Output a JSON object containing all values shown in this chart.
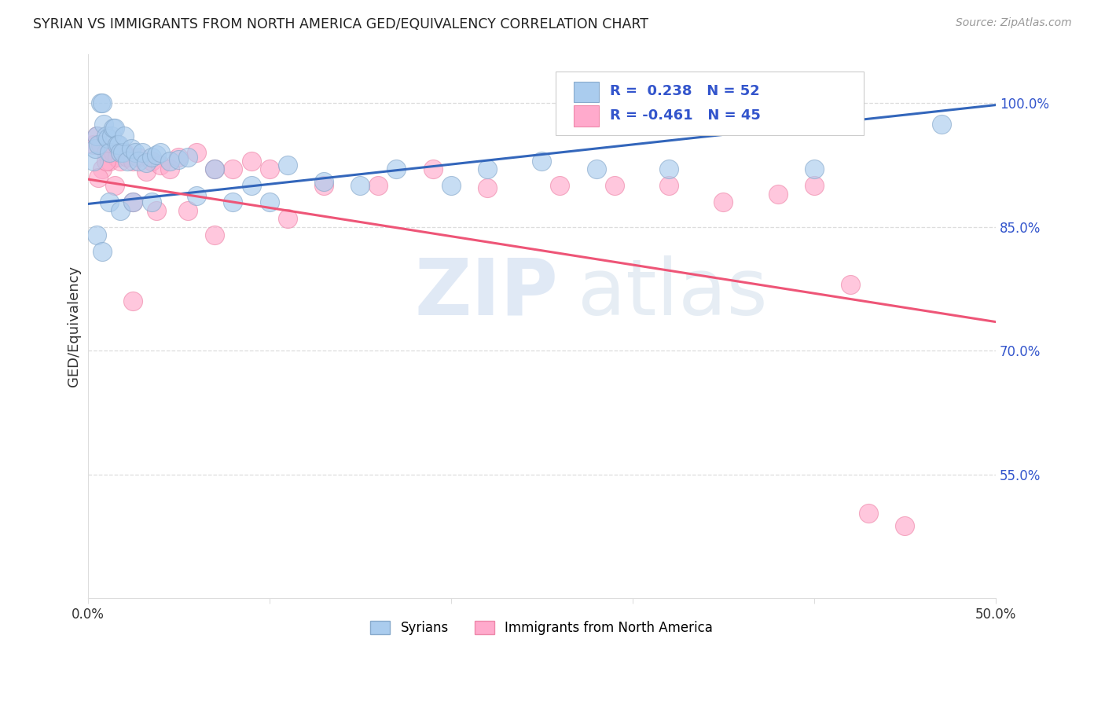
{
  "title": "SYRIAN VS IMMIGRANTS FROM NORTH AMERICA GED/EQUIVALENCY CORRELATION CHART",
  "source": "Source: ZipAtlas.com",
  "ylabel": "GED/Equivalency",
  "right_yticks": [
    "100.0%",
    "85.0%",
    "70.0%",
    "55.0%"
  ],
  "right_ytick_vals": [
    1.0,
    0.85,
    0.7,
    0.55
  ],
  "blue_scatter_color": "#AACCEE",
  "blue_edge_color": "#88AACC",
  "pink_scatter_color": "#FFAACC",
  "pink_edge_color": "#EE88AA",
  "blue_line_color": "#3366BB",
  "pink_line_color": "#EE5577",
  "xmin": 0.0,
  "xmax": 0.5,
  "ymin": 0.4,
  "ymax": 1.06,
  "blue_line_x": [
    0.0,
    0.5
  ],
  "blue_line_y": [
    0.878,
    0.998
  ],
  "pink_line_x": [
    0.0,
    0.5
  ],
  "pink_line_y": [
    0.908,
    0.735
  ],
  "r_blue": "0.238",
  "n_blue": "52",
  "r_pink": "-0.461",
  "n_pink": "45",
  "legend_text_color": "#3355CC",
  "grid_color": "#DDDDDD",
  "title_color": "#222222",
  "source_color": "#999999",
  "background_color": "#ffffff",
  "syrians_x": [
    0.003,
    0.004,
    0.005,
    0.006,
    0.007,
    0.008,
    0.009,
    0.01,
    0.011,
    0.012,
    0.013,
    0.014,
    0.015,
    0.016,
    0.017,
    0.018,
    0.019,
    0.02,
    0.022,
    0.024,
    0.026,
    0.028,
    0.03,
    0.032,
    0.035,
    0.038,
    0.04,
    0.045,
    0.05,
    0.055,
    0.06,
    0.07,
    0.08,
    0.09,
    0.1,
    0.11,
    0.13,
    0.15,
    0.17,
    0.2,
    0.22,
    0.25,
    0.28,
    0.32,
    0.4,
    0.47,
    0.005,
    0.008,
    0.012,
    0.018,
    0.025,
    0.035
  ],
  "syrians_y": [
    0.93,
    0.945,
    0.96,
    0.95,
    1.0,
    1.0,
    0.975,
    0.96,
    0.958,
    0.94,
    0.96,
    0.97,
    0.97,
    0.95,
    0.95,
    0.94,
    0.94,
    0.96,
    0.93,
    0.945,
    0.94,
    0.93,
    0.94,
    0.928,
    0.935,
    0.938,
    0.94,
    0.93,
    0.932,
    0.935,
    0.888,
    0.92,
    0.88,
    0.9,
    0.88,
    0.925,
    0.905,
    0.9,
    0.92,
    0.9,
    0.92,
    0.93,
    0.92,
    0.92,
    0.92,
    0.975,
    0.84,
    0.82,
    0.88,
    0.87,
    0.88,
    0.88
  ],
  "immigrants_x": [
    0.003,
    0.005,
    0.007,
    0.008,
    0.01,
    0.012,
    0.014,
    0.016,
    0.018,
    0.02,
    0.022,
    0.025,
    0.028,
    0.032,
    0.035,
    0.04,
    0.045,
    0.05,
    0.06,
    0.07,
    0.08,
    0.09,
    0.1,
    0.13,
    0.16,
    0.19,
    0.22,
    0.26,
    0.29,
    0.32,
    0.35,
    0.38,
    0.4,
    0.42,
    0.43,
    0.45,
    0.006,
    0.01,
    0.015,
    0.025,
    0.038,
    0.055,
    0.025,
    0.07,
    0.11
  ],
  "immigrants_y": [
    0.95,
    0.96,
    0.95,
    0.92,
    0.94,
    0.93,
    0.94,
    0.935,
    0.93,
    0.94,
    0.935,
    0.93,
    0.935,
    0.918,
    0.93,
    0.925,
    0.92,
    0.935,
    0.94,
    0.92,
    0.92,
    0.93,
    0.92,
    0.9,
    0.9,
    0.92,
    0.898,
    0.9,
    0.9,
    0.9,
    0.88,
    0.89,
    0.9,
    0.78,
    0.503,
    0.488,
    0.91,
    0.93,
    0.9,
    0.88,
    0.87,
    0.87,
    0.76,
    0.84,
    0.86
  ]
}
